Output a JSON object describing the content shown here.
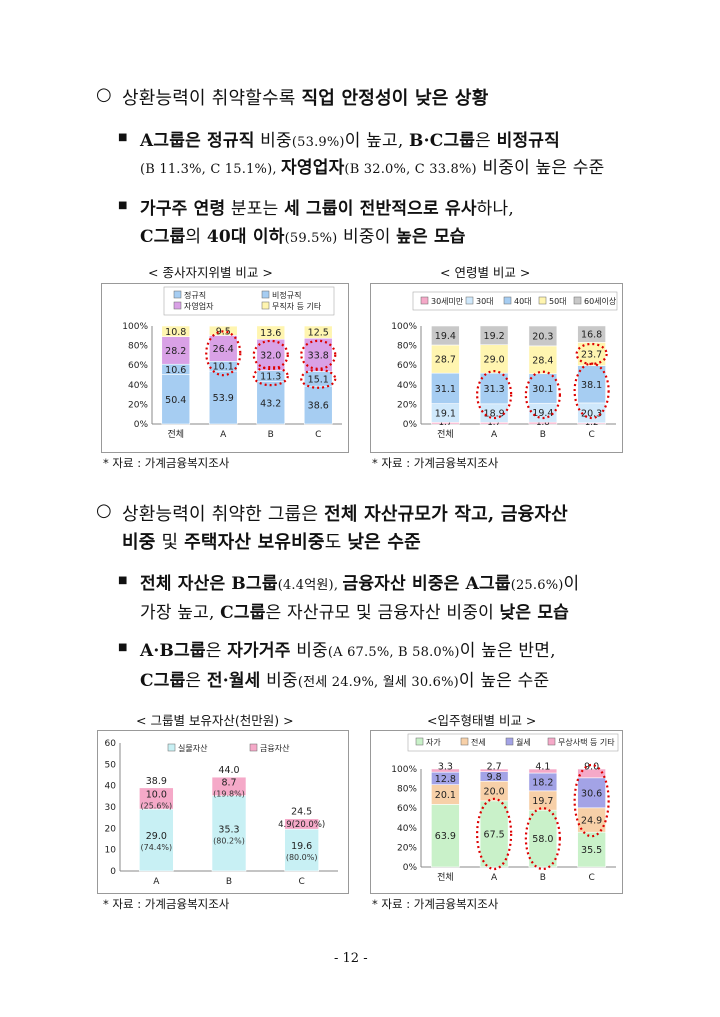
{
  "section1": {
    "heading_pre": "상환능력이 취약할수록 ",
    "heading_bold": "직업 안정성이 낮은 상황",
    "b1_l1": [
      {
        "t": "A그룹은 정규직",
        "b": true
      },
      {
        "t": " 비중",
        "b": false
      },
      {
        "t": "(53.9%)",
        "b": false,
        "sm": true
      },
      {
        "t": "이 높고, ",
        "b": false
      },
      {
        "t": "B·C그룹",
        "b": true
      },
      {
        "t": "은 ",
        "b": false
      },
      {
        "t": "비정규직",
        "b": true
      }
    ],
    "b1_l2": [
      {
        "t": "(B 11.3%, C 15.1%), ",
        "b": false,
        "sm": true
      },
      {
        "t": "자영업자",
        "b": true
      },
      {
        "t": "(B 32.0%, C 33.8%)",
        "b": false,
        "sm": true
      },
      {
        "t": " 비중이 높은 수준",
        "b": false
      }
    ],
    "b2_l1": [
      {
        "t": "가구주 연령",
        "b": true
      },
      {
        "t": " 분포는 ",
        "b": false
      },
      {
        "t": "세 그룹이 전반적으로 유사",
        "b": true
      },
      {
        "t": "하나,",
        "b": false
      }
    ],
    "b2_l2": [
      {
        "t": "C그룹",
        "b": true
      },
      {
        "t": "의 ",
        "b": false
      },
      {
        "t": "40대 이하",
        "b": true
      },
      {
        "t": "(59.5%)",
        "b": false,
        "sm": true
      },
      {
        "t": " 비중이 ",
        "b": false
      },
      {
        "t": "높은 모습",
        "b": true
      }
    ]
  },
  "section2": {
    "heading_l1": [
      {
        "t": "상환능력이 취약한 그룹은 ",
        "b": false
      },
      {
        "t": "전체 자산규모가 작고, 금융자산",
        "b": true
      }
    ],
    "heading_l2": [
      {
        "t": "비중",
        "b": true
      },
      {
        "t": " 및 ",
        "b": false
      },
      {
        "t": "주택자산 보유비중",
        "b": true
      },
      {
        "t": "도 ",
        "b": false
      },
      {
        "t": "낮은 수준",
        "b": true
      }
    ],
    "b1_l1": [
      {
        "t": "전체 자산은 B그룹",
        "b": true
      },
      {
        "t": "(4.4억원), ",
        "b": false,
        "sm": true
      },
      {
        "t": "금융자산 비중은 A그룹",
        "b": true
      },
      {
        "t": "(25.6%)",
        "b": false,
        "sm": true
      },
      {
        "t": "이",
        "b": false
      }
    ],
    "b1_l2": [
      {
        "t": "가장 높고, ",
        "b": false
      },
      {
        "t": "C그룹",
        "b": true
      },
      {
        "t": "은 자산규모 및 금융자산 비중이 ",
        "b": false
      },
      {
        "t": "낮은 모습",
        "b": true
      }
    ],
    "b2_l1": [
      {
        "t": "A·B그룹",
        "b": true
      },
      {
        "t": "은 ",
        "b": false
      },
      {
        "t": "자가거주",
        "b": true
      },
      {
        "t": " 비중",
        "b": false
      },
      {
        "t": "(A 67.5%, B 58.0%)",
        "b": false,
        "sm": true
      },
      {
        "t": "이 높은 반면,",
        "b": false
      }
    ],
    "b2_l2": [
      {
        "t": "C그룹",
        "b": true
      },
      {
        "t": "은 ",
        "b": false
      },
      {
        "t": "전·월세",
        "b": true
      },
      {
        "t": " 비중",
        "b": false
      },
      {
        "t": "(전세 24.9%, 월세 30.6%)",
        "b": false,
        "sm": true
      },
      {
        "t": "이 높은 수준",
        "b": false
      }
    ]
  },
  "colors": {
    "blue": "#a6cdf2",
    "purple": "#d9a1e6",
    "yellow": "#fff5b0",
    "pink": "#f5a9c8",
    "gray": "#c8c8c8",
    "orange": "#f7d0a8",
    "indigo": "#a3a3e6",
    "green": "#c9f1c9",
    "cyan": "#c8f0f4",
    "red_ellipse": "#dd0000"
  },
  "chart_data": [
    {
      "type": "bar",
      "stacked": true,
      "title": "< 종사자지위별 비교 >",
      "categories": [
        "전체",
        "A",
        "B",
        "C"
      ],
      "series": [
        {
          "name": "정규직",
          "values": [
            50.4,
            53.9,
            43.2,
            38.6
          ],
          "color": "#a6cdf2"
        },
        {
          "name": "비정규직",
          "values": [
            10.6,
            10.1,
            11.3,
            15.1
          ],
          "color": "#a6cdf2"
        },
        {
          "name": "자영업자",
          "values": [
            28.2,
            26.4,
            32.0,
            33.8
          ],
          "color": "#d9a1e6"
        },
        {
          "name": "무직자 등 기타",
          "values": [
            10.8,
            9.5,
            13.6,
            12.5
          ],
          "color": "#fff5b0"
        }
      ],
      "yticks": [
        "100%",
        "80%",
        "60%",
        "40%",
        "20%",
        "0%"
      ],
      "ylim": [
        0,
        100
      ],
      "legend": "top",
      "source": "* 자료 : 가계금융복지조사"
    },
    {
      "type": "bar",
      "stacked": true,
      "title": "< 연령별 비교 >",
      "categories": [
        "전체",
        "A",
        "B",
        "C"
      ],
      "series": [
        {
          "name": "30세미만",
          "values": [
            1.7,
            1.7,
            1.8,
            1.2
          ],
          "color": "#f5a9c8"
        },
        {
          "name": "30대",
          "values": [
            19.1,
            18.9,
            19.4,
            20.3
          ],
          "color": "#cfe8fb"
        },
        {
          "name": "40대",
          "values": [
            31.1,
            31.3,
            30.1,
            38.1
          ],
          "color": "#a6cdf2"
        },
        {
          "name": "50대",
          "values": [
            28.7,
            29.0,
            28.4,
            23.7
          ],
          "color": "#fff5b0"
        },
        {
          "name": "60세이상",
          "values": [
            19.4,
            19.2,
            20.3,
            16.8
          ],
          "color": "#c8c8c8"
        }
      ],
      "yticks": [
        "100%",
        "80%",
        "60%",
        "40%",
        "20%",
        "0%"
      ],
      "ylim": [
        0,
        100
      ],
      "legend": "top",
      "source": "* 자료 : 가계금융복지조사"
    },
    {
      "type": "bar",
      "stacked": true,
      "title": "< 그룹별 보유자산(천만원) >",
      "categories": [
        "A",
        "B",
        "C"
      ],
      "series": [
        {
          "name": "실물자산",
          "values": [
            29.0,
            35.3,
            19.6
          ],
          "shares": [
            "(74.4%)",
            "(80.2%)",
            "(80.0%)"
          ],
          "color": "#c8f0f4"
        },
        {
          "name": "금융자산",
          "values": [
            10.0,
            8.7,
            4.9
          ],
          "shares": [
            "(25.6%)",
            "(19.8%)",
            "(20.0%)"
          ],
          "color": "#f5a9c8"
        }
      ],
      "totals": [
        38.9,
        44.0,
        24.5
      ],
      "yticks": [
        "60",
        "50",
        "40",
        "30",
        "20",
        "10",
        "0"
      ],
      "ylim": [
        0,
        60
      ],
      "legend": "top",
      "source": "* 자료 : 가계금융복지조사"
    },
    {
      "type": "bar",
      "stacked": true,
      "title": "<입주형태별 비교 >",
      "categories": [
        "전체",
        "A",
        "B",
        "C"
      ],
      "series": [
        {
          "name": "자가",
          "values": [
            63.9,
            67.5,
            58.0,
            35.5
          ],
          "color": "#c9f1c9"
        },
        {
          "name": "전세",
          "values": [
            20.1,
            20.0,
            19.7,
            24.9
          ],
          "color": "#f7d0a8"
        },
        {
          "name": "월세",
          "values": [
            12.8,
            9.8,
            18.2,
            30.6
          ],
          "color": "#a3a3e6"
        },
        {
          "name": "무상사택 등 기타",
          "values": [
            3.3,
            2.7,
            4.1,
            9.0
          ],
          "color": "#f5a9c8"
        }
      ],
      "yticks": [
        "100%",
        "80%",
        "60%",
        "40%",
        "20%",
        "0%"
      ],
      "ylim": [
        0,
        100
      ],
      "legend": "top",
      "source": "* 자료 : 가계금융복지조사"
    }
  ],
  "page_number": "- 12 -"
}
